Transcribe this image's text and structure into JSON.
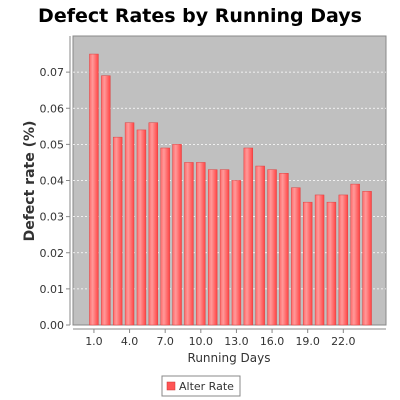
{
  "chart_data": {
    "type": "bar",
    "title": "Defect Rates by Running Days",
    "xlabel": "Running Days",
    "ylabel": "Defect rate (%)",
    "categories": [
      "1.0",
      "2.0",
      "3.0",
      "4.0",
      "5.0",
      "6.0",
      "7.0",
      "8.0",
      "9.0",
      "10.0",
      "11.0",
      "12.0",
      "13.0",
      "14.0",
      "15.0",
      "16.0",
      "17.0",
      "18.0",
      "19.0",
      "20.0",
      "21.0",
      "22.0",
      "23.0",
      "24.0"
    ],
    "x_tick_labels": [
      "1.0",
      "4.0",
      "7.0",
      "10.0",
      "13.0",
      "16.0",
      "19.0",
      "22.0"
    ],
    "series": [
      {
        "name": "Alter Rate",
        "values": [
          0.075,
          0.069,
          0.052,
          0.056,
          0.054,
          0.056,
          0.049,
          0.05,
          0.045,
          0.045,
          0.043,
          0.043,
          0.04,
          0.049,
          0.044,
          0.043,
          0.042,
          0.038,
          0.034,
          0.036,
          0.034,
          0.036,
          0.039,
          0.037
        ]
      }
    ],
    "ylim": [
      0,
      0.08
    ],
    "y_ticks": [
      "0.00",
      "0.01",
      "0.02",
      "0.03",
      "0.04",
      "0.05",
      "0.06",
      "0.07"
    ],
    "grid": true,
    "legend_position": "bottom",
    "colors": {
      "bar_fill": "#ff5555",
      "bar_highlight": "#ff9999",
      "plot_background": "#c0c0c0",
      "grid_line": "#ffffff"
    }
  }
}
